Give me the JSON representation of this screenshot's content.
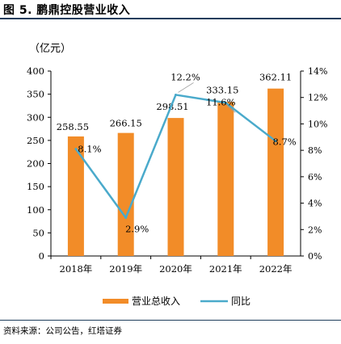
{
  "figure_title": "图 5. 鹏鼎控股营业收入",
  "source": "资料来源：公司公告，红塔证券",
  "chart_data": {
    "type": "bar",
    "y_unit_label": "（亿元）",
    "categories": [
      "2018年",
      "2019年",
      "2020年",
      "2021年",
      "2022年"
    ],
    "series": [
      {
        "name": "营业总收入",
        "type": "bar",
        "axis": "left",
        "color": "#f28c28",
        "values": [
          258.55,
          266.15,
          298.51,
          333.15,
          362.11
        ],
        "labels": [
          "258.55",
          "266.15",
          "298.51",
          "333.15",
          "362.11"
        ]
      },
      {
        "name": "同比",
        "type": "line",
        "axis": "right",
        "color": "#4aaacb",
        "values": [
          8.1,
          2.9,
          12.2,
          11.6,
          8.7
        ],
        "labels": [
          "8.1%",
          "2.9%",
          "12.2%",
          "11.6%",
          "8.7%"
        ]
      }
    ],
    "y_left": {
      "min": 0,
      "max": 400,
      "ticks": [
        "0",
        "50",
        "100",
        "150",
        "200",
        "250",
        "300",
        "350",
        "400"
      ]
    },
    "y_right": {
      "min": 0,
      "max": 14,
      "ticks": [
        "0%",
        "2%",
        "4%",
        "6%",
        "8%",
        "10%",
        "12%",
        "14%"
      ]
    },
    "grid": false,
    "legend_position": "bottom"
  }
}
